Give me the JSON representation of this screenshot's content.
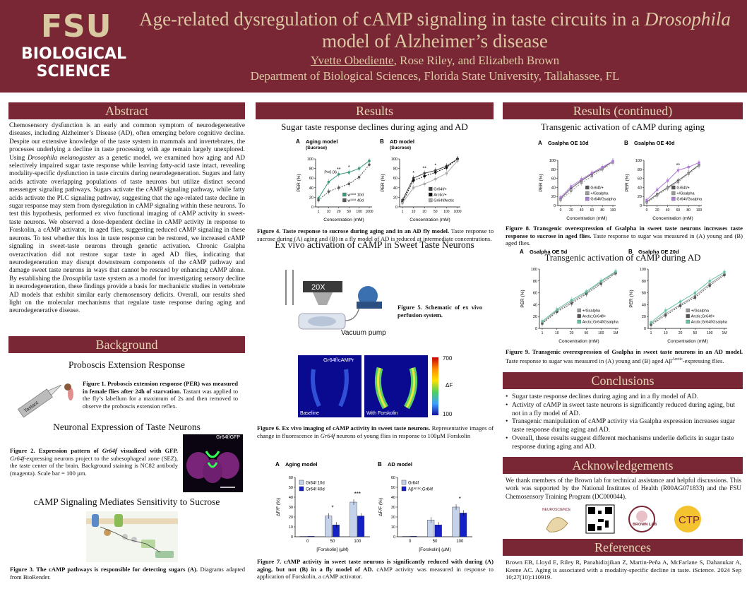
{
  "header": {
    "logo_top": "FSU",
    "logo_bottom_1": "BIOLOGICAL",
    "logo_bottom_2": "SCIENCE",
    "title_part1": "Age-related dysregulation of cAMP signaling in taste circuits in a ",
    "title_italic": "Drosophila",
    "title_part2": " model of Alzheimer’s disease",
    "author_first": "Yvette Obediente",
    "authors_rest": ", Rose Riley, and Elizabeth Brown",
    "department": "Department of Biological Sciences, Florida State University, Tallahassee, FL"
  },
  "sections": {
    "abstract": "Abstract",
    "background": "Background",
    "results": "Results",
    "results_cont": "Results (continued)",
    "conclusions": "Conclusions",
    "acknowledgements": "Acknowledgements",
    "references": "References"
  },
  "abstract": {
    "p1": "Chemosensory dysfunction is an early and common symptom of neurodegenerative diseases, including Alzheimer’s Disease (AD), often emerging before cognitive decline. Despite our extensive knowledge of the taste system in mammals and invertebrates, the processes underlying a decline in taste processing with age remain largely unexplored. Using ",
    "p1_italic": "Drosophila melanogaster",
    "p2": " as a genetic model, we examined how aging and AD selectively impaired sugar taste response while leaving fatty-acid taste intact, revealing modality-specific dysfunction in taste circuits during neurodegeneration. Sugars and fatty acids activate overlapping populations of taste neurons but utilize distinct second messenger signaling pathways. Sugars activate the cAMP signaling pathway, while fatty acids activate the PLC signaling pathway, suggesting that the age-related taste decline in sugar response may stem from dysregulation in cAMP signaling within these neurons. To test this hypothesis, performed ex vivo functional imaging of cAMP activity in sweet-taste neurons. We observed a dose-dependent decline in cAMP activity in response to Forskolin, a cAMP activator, in aged flies, suggesting reduced cAMP signaling in these neurons. To test whether this loss in taste response can be restored, we increased cAMP signaling in sweet-taste neurons through genetic activation. Chronic Gsalpha overactivation did not restore sugar taste in aged AD flies, indicating that neurodegeneration may disrupt downstream components of the cAMP pathway and damage sweet taste neurons in ways that cannot be rescued by enhancing cAMP alone. By establishing the ",
    "p2_italic": "Drosophila",
    "p3": " taste system as a model for investigating sensory decline in neurodegeneration, these findings provide a basis for mechanistic studies in vertebrate AD models that exhibit similar early chemosensory deficits. Overall, our results shed light on the molecular mechanisms that regulate taste response during aging and neurodegenerative disease."
  },
  "background": {
    "per_title": "Proboscis Extension Response",
    "fig1_bold": "Figure 1. Proboscis extension response (PER) was measured in female flies after 24h of starvation.",
    "fig1_rest": " Tastant was applied to the fly’s labellum for a maximum of 2s and then removed to observe the proboscis extension reflex.",
    "tastant_label": "Tastant",
    "neuronal_title": "Neuronal Expression of Taste Neurons",
    "fig2_bold_a": "Figure 2. Expression pattern of ",
    "fig2_bold_i": "Gr64f",
    "fig2_bold_b": " visualized with GFP.",
    "fig2_i": "Gr64f",
    "fig2_rest": "-expressing neurons project to the subesophageal zone (SEZ), the taste center of the brain. Background staining is NC82 antibody (magenta). Scale bar = 100 µm.",
    "gr64f_gfp": "Gr64f/GFP",
    "camp_title": "cAMP Signaling Mediates Sensitivity to Sucrose",
    "fig3_bold": "Figure 3. The cAMP pathways is responsible for detecting sugars (A).",
    "fig3_rest": " Diagrams adapted from BioRender."
  },
  "results": {
    "sugar_title": "Sugar taste response declines during aging and AD",
    "fig4_bold": "Figure 4. Taste response to sucrose during aging and in an AD fly model.",
    "fig4_rest": " Taste response to sucrose during (A) aging and (B) in a fly model of AD is reduced at intermediate concentrations.",
    "exvivo_title": "Ex vivo activation of cAMP in Sweet Taste Neurons",
    "objective": "20X",
    "vacuum": "Vacuum pump",
    "fig5_bold": "Figure 5. Schematic of ex vivo perfusion system.",
    "img_label": "Gr64f/cAMPr",
    "baseline": "Baseline",
    "forskolin_img": "With Forskolin",
    "scale_max": "700",
    "scale_min": "100",
    "scale_label": "ΔF",
    "fig6_bold": "Figure 6. Ex vivo imaging of cAMP activity in sweet taste neurons.",
    "fig6_a": " Representative images of change in fluorescence in ",
    "fig6_i": "Gr64f",
    "fig6_b": " neurons of young flies in response to 100µM Forskolin",
    "fig7_bold": "Figure 7. cAMP activity in sweet taste neurons is significantly reduced with during (A) aging, but not (B) in a fly model of AD.",
    "fig7_rest": " cAMP activity was measured in response to application of Forskolin, a cAMP activator."
  },
  "results_cont": {
    "aging_title": "Transgenic activation of cAMP during aging",
    "fig8_bold": "Figure 8. Transgenic overexpression of Gsalpha in sweet taste neurons increases taste response to sucrose in aged flies.",
    "fig8_rest": " Taste response to sugar was measured in (A) young and (B) aged flies.",
    "ad_title": "Transgenic activation of cAMP during AD",
    "fig9_bold": "Figure 9. Transgenic overexpression of Gsalpha in sweet taste neurons in an AD model.",
    "fig9_a": " Taste response to sugar was measured in (A) young and (B) aged Aβ",
    "fig9_sup": "Arctic",
    "fig9_b": "-expressing flies."
  },
  "conclusions": [
    "Sugar taste response declines during aging and in a fly model of AD.",
    "Activity of cAMP in sweet taste neurons is significantly reduced during aging, but not in a fly model of AD.",
    "Transgenic manipulation of cAMP activity via Gsalpha expression increases sugar taste response during aging and AD.",
    "Overall, these results suggest different mechanisms underlie deficits in sugar taste response during aging and AD."
  ],
  "acknowledgements": "We thank members of the Brown lab for technical assistance and helpful discussions. This work was supported by the National Institutes of Health (R00AG071833) and the FSU Chemosensory Training Program (DC000044).",
  "ack_logos": {
    "neuro": "NEUROSCIENCE",
    "brown": "BROWN LAB",
    "ctp": "CTP"
  },
  "references": "Brown EB, Lloyd E, Riley R, Panahidizjikan Z, Martin-Peña A, McFarlane S, Dahanukar A, Keene AC. Aging is associated with a modality-specific decline in taste. iScience. 2024 Sep 10;27(10):110919.",
  "chart_data": [
    {
      "id": "fig4A",
      "type": "line",
      "panel": "A",
      "title": "Aging model",
      "subtitle": "(Sucrose)",
      "xlabel": "Concentration (mM)",
      "ylabel": "PER (%)",
      "x": [
        1,
        10,
        20,
        50,
        100,
        1000
      ],
      "xticks": [
        "1",
        "10",
        "20",
        "50",
        "100",
        "1000"
      ],
      "ylim": [
        0,
        100
      ],
      "yticks": [
        0,
        20,
        40,
        60,
        80,
        100
      ],
      "pval": "P=0.06",
      "stars": [
        {
          "x": 20,
          "t": "**"
        },
        {
          "x": 50,
          "t": "*"
        }
      ],
      "series": [
        {
          "name": "w¹¹¹⁸ 10d",
          "color": "#3a9a78",
          "values": [
            18,
            52,
            68,
            72,
            80,
            96
          ]
        },
        {
          "name": "w¹¹¹⁸ 40d",
          "color": "#5a5a5a",
          "values": [
            14,
            32,
            40,
            48,
            62,
            88
          ]
        }
      ]
    },
    {
      "id": "fig4B",
      "type": "line",
      "panel": "B",
      "title": "AD model",
      "subtitle": "(Sucrose)",
      "xlabel": "Concentration (mM)",
      "ylabel": "PER (%)",
      "x": [
        1,
        10,
        20,
        50,
        100,
        1000
      ],
      "xticks": [
        "1",
        "10",
        "20",
        "50",
        "100",
        "1000"
      ],
      "ylim": [
        0,
        100
      ],
      "yticks": [
        0,
        20,
        40,
        60,
        80,
        100
      ],
      "stars": [
        {
          "x": 10,
          "t": "*"
        },
        {
          "x": 20,
          "t": "**"
        },
        {
          "x": 50,
          "t": "*"
        }
      ],
      "series": [
        {
          "name": "Gr64f/+",
          "color": "#444444",
          "values": [
            14,
            60,
            70,
            76,
            85,
            100
          ]
        },
        {
          "name": "Arctic/+",
          "color": "#111111",
          "values": [
            10,
            55,
            64,
            72,
            82,
            100
          ]
        },
        {
          "name": "Gr64f/Arctic",
          "color": "#aaaaaa",
          "values": [
            8,
            40,
            48,
            58,
            70,
            96
          ]
        }
      ]
    },
    {
      "id": "fig7A",
      "type": "bar",
      "panel": "A",
      "title": "Aging model",
      "xlabel": "[Forskolin] (µM)",
      "ylabel": "ΔF/F (%)",
      "categories": [
        "0",
        "50",
        "100"
      ],
      "ylim": [
        0,
        60
      ],
      "yticks": [
        0,
        10,
        20,
        30,
        40,
        50,
        60
      ],
      "stars": [
        {
          "cat": "50",
          "t": "*"
        },
        {
          "cat": "100",
          "t": "***"
        }
      ],
      "series": [
        {
          "name": "Gr64f 10d",
          "color": "#c5d3ea",
          "values": [
            0.5,
            21,
            35
          ]
        },
        {
          "name": "Gr64f 40d",
          "color": "#1420c8",
          "values": [
            0.5,
            12,
            21
          ]
        }
      ]
    },
    {
      "id": "fig7B",
      "type": "bar",
      "panel": "B",
      "title": "AD model",
      "xlabel": "[Forskolin] (µM)",
      "ylabel": "ΔF/F (%)",
      "categories": [
        "0",
        "50",
        "100"
      ],
      "ylim": [
        0,
        60
      ],
      "yticks": [
        0,
        10,
        20,
        30,
        40,
        50,
        60
      ],
      "stars": [
        {
          "cat": "100",
          "t": "*"
        }
      ],
      "series": [
        {
          "name": "Gr64f",
          "color": "#c5d3ea",
          "values": [
            0.5,
            17,
            30
          ]
        },
        {
          "name": "Aβᴬʳᶜᵗⁱᶜ;Gr64f",
          "color": "#1420c8",
          "values": [
            0.5,
            12,
            24
          ]
        }
      ]
    },
    {
      "id": "fig8A",
      "type": "line",
      "panel": "A",
      "title": "Gsalpha OE 10d",
      "xlabel": "Concentration (mM)",
      "ylabel": "PER (%)",
      "x": [
        1,
        5,
        10,
        20,
        50,
        100
      ],
      "xticks": [
        "0",
        "20",
        "40",
        "60",
        "80",
        "100"
      ],
      "ylim": [
        0,
        100
      ],
      "yticks": [
        0,
        20,
        40,
        60,
        80,
        100
      ],
      "linear": true,
      "stars": [],
      "series": [
        {
          "name": "Gr64f/+",
          "color": "#555555",
          "values": [
            15,
            38,
            55,
            70,
            82,
            98
          ]
        },
        {
          "name": "+/Gsalpha",
          "color": "#999999",
          "values": [
            12,
            32,
            50,
            65,
            80,
            95
          ]
        },
        {
          "name": "Gr64f/Gsalpha",
          "color": "#b07ad8",
          "values": [
            18,
            42,
            58,
            72,
            85,
            98
          ]
        }
      ]
    },
    {
      "id": "fig8B",
      "type": "line",
      "panel": "B",
      "title": "Gsalpha OE 40d",
      "xlabel": "Concentration (mM)",
      "ylabel": "PER (%)",
      "x": [
        1,
        5,
        10,
        20,
        50,
        100
      ],
      "xticks": [
        "0",
        "20",
        "40",
        "60",
        "80",
        "100"
      ],
      "ylim": [
        0,
        100
      ],
      "yticks": [
        0,
        20,
        40,
        60,
        80,
        100
      ],
      "linear": true,
      "stars": [
        {
          "x": 20,
          "t": "**"
        }
      ],
      "series": [
        {
          "name": "Gr64f/+",
          "color": "#555555",
          "values": [
            8,
            25,
            40,
            55,
            72,
            90
          ]
        },
        {
          "name": "+/Gsalpha",
          "color": "#999999",
          "values": [
            6,
            22,
            38,
            52,
            70,
            88
          ]
        },
        {
          "name": "Gr64f/Gsalpha",
          "color": "#b07ad8",
          "values": [
            12,
            35,
            55,
            78,
            85,
            95
          ]
        }
      ]
    },
    {
      "id": "fig9A",
      "type": "line",
      "panel": "A",
      "title": "Gsalpha OE 5d",
      "xlabel": "Concentration (mM)",
      "ylabel": "PER (%)",
      "x": [
        1,
        10,
        20,
        50,
        100,
        1000
      ],
      "xticks": [
        "1",
        "10",
        "20",
        "50",
        "100",
        "1M"
      ],
      "ylim": [
        0,
        100
      ],
      "yticks": [
        0,
        20,
        40,
        60,
        80,
        100
      ],
      "stars": [],
      "series": [
        {
          "name": "+/Gsalpha",
          "color": "#999999",
          "values": [
            10,
            30,
            45,
            60,
            78,
            95
          ]
        },
        {
          "name": "Arctic;Gr64f/+",
          "color": "#555555",
          "values": [
            8,
            28,
            42,
            58,
            75,
            93
          ]
        },
        {
          "name": "Arctic;Gr64f/Gsalpha",
          "color": "#66c2a5",
          "values": [
            12,
            32,
            48,
            62,
            80,
            96
          ]
        }
      ]
    },
    {
      "id": "fig9B",
      "type": "line",
      "panel": "B",
      "title": "Gsalpha OE 20d",
      "xlabel": "Concentration (mM)",
      "ylabel": "PER (%)",
      "x": [
        1,
        10,
        20,
        50,
        100,
        1000
      ],
      "xticks": [
        "1",
        "10",
        "20",
        "50",
        "100",
        "1M"
      ],
      "ylim": [
        0,
        100
      ],
      "yticks": [
        0,
        20,
        40,
        60,
        80,
        100
      ],
      "stars": [],
      "series": [
        {
          "name": "+/Gsalpha",
          "color": "#999999",
          "values": [
            8,
            25,
            40,
            55,
            75,
            92
          ]
        },
        {
          "name": "Arctic;Gr64f/+",
          "color": "#555555",
          "values": [
            6,
            22,
            38,
            52,
            72,
            90
          ]
        },
        {
          "name": "Arctic;Gr64f/Gsalpha",
          "color": "#66c2a5",
          "values": [
            10,
            30,
            45,
            60,
            80,
            95
          ]
        }
      ]
    }
  ]
}
